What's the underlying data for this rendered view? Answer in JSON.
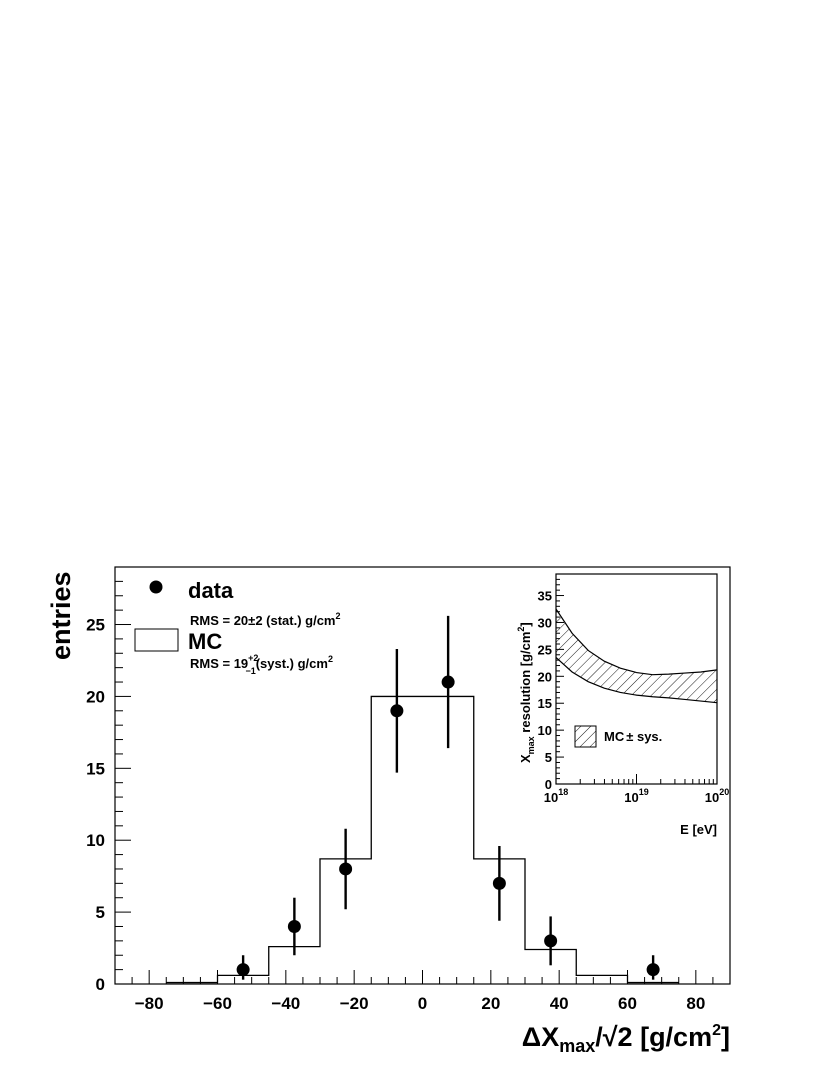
{
  "chart_data": [
    {
      "type": "bar",
      "xlabel": {
        "main": "ΔX",
        "sub": "max",
        "mid": "/√2 [g/cm",
        "sup": "2",
        "end": "]"
      },
      "ylabel": "entries",
      "xlim": [
        -90,
        90
      ],
      "ylim": [
        0,
        29
      ],
      "xticks": [
        -80,
        -60,
        -40,
        -20,
        0,
        20,
        40,
        60,
        80
      ],
      "xtick_labels": [
        "−80",
        "−60",
        "−40",
        "−20",
        "0",
        "20",
        "40",
        "60",
        "80"
      ],
      "yticks": [
        0,
        5,
        10,
        15,
        20,
        25
      ],
      "yticks_labels": [
        "0",
        "5",
        "10",
        "15",
        "20",
        "25"
      ],
      "legend": {
        "data_label": "data",
        "data_rms": {
          "pre": "RMS = 20",
          "pm": "±",
          "post": "2 (stat.) g/cm",
          "sup": "2"
        },
        "mc_label": "MC",
        "mc_rms": {
          "pre": "RMS = 19",
          "sup_err": "+2",
          "sub_err": "−1",
          "post": "(syst.) g/cm",
          "sup": "2"
        }
      },
      "series": [
        {
          "name": "MC",
          "kind": "histogram",
          "bin_edges": [
            -75,
            -60,
            -45,
            -30,
            -15,
            0,
            15,
            30,
            45,
            60,
            75
          ],
          "values": [
            0.1,
            0.6,
            2.6,
            8.7,
            20.0,
            20.0,
            8.7,
            2.4,
            0.6,
            0.1
          ]
        },
        {
          "name": "data",
          "kind": "points_with_errors",
          "x": [
            -52.5,
            -37.5,
            -22.5,
            -7.5,
            7.5,
            22.5,
            37.5,
            67.5
          ],
          "y": [
            1,
            4,
            8,
            19,
            21,
            7,
            3,
            1
          ],
          "err_low": [
            0.7,
            2.0,
            2.8,
            4.3,
            4.6,
            2.6,
            1.7,
            0.7
          ],
          "err_high": [
            1.0,
            2.0,
            2.8,
            4.3,
            4.6,
            2.6,
            1.7,
            1.0
          ]
        }
      ]
    },
    {
      "type": "area",
      "inset": true,
      "xscale": "log",
      "xlabel": "E [eV]",
      "ylabel": {
        "main": "X",
        "sub": "max",
        "mid": " resolution [g/cm",
        "sup": "2",
        "end": "]"
      },
      "xlim": [
        1e+18,
        1e+20
      ],
      "ylim": [
        0,
        39
      ],
      "xticks": [
        {
          "base": "10",
          "exp": "18"
        },
        {
          "base": "10",
          "exp": "19"
        },
        {
          "base": "10",
          "exp": "20"
        }
      ],
      "yticks": [
        0,
        5,
        10,
        15,
        20,
        25,
        30,
        35
      ],
      "yticks_labels": [
        "0",
        "5",
        "10",
        "15",
        "20",
        "25",
        "30",
        "35"
      ],
      "legend": {
        "label": "MC",
        "pm": "±",
        "sys": " sys."
      },
      "band": {
        "name": "MC ± sys.",
        "log10E": [
          18.0,
          18.2,
          18.4,
          18.6,
          18.8,
          19.0,
          19.2,
          19.4,
          19.6,
          19.8,
          20.0
        ],
        "upper": [
          32.5,
          28.0,
          24.8,
          22.8,
          21.5,
          20.7,
          20.3,
          20.4,
          20.6,
          20.8,
          21.2
        ],
        "lower": [
          23.5,
          20.8,
          19.0,
          17.8,
          17.0,
          16.5,
          16.2,
          16.0,
          15.7,
          15.4,
          15.1
        ]
      }
    }
  ]
}
